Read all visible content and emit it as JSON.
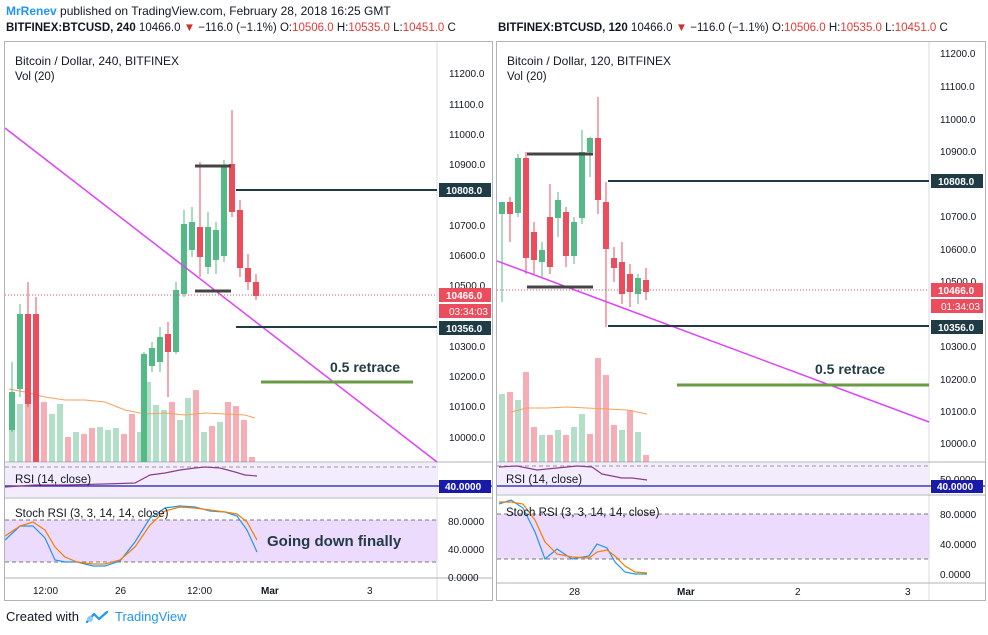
{
  "header": {
    "author": "MrRenev",
    "published_text": "published on TradingView.com, February 28, 2018 16:25 GMT"
  },
  "tickers": [
    {
      "symbol": "BITFINEX:BTCUSD, 240",
      "last": "10466.0",
      "change": "−116.0 (−1.1%)",
      "o_label": "O:",
      "o": "10506.0",
      "h_label": "H:",
      "h": "10535.0",
      "l_label": "L:",
      "l": "10451.0",
      "c_label": "C"
    },
    {
      "symbol": "BITFINEX:BTCUSD, 120",
      "last": "10466.0",
      "change": "−116.0 (−1.1%)",
      "o_label": "O:",
      "o": "10506.0",
      "h_label": "H:",
      "h": "10535.0",
      "l_label": "L:",
      "l": "10451.0",
      "c_label": "C"
    }
  ],
  "panels": [
    {
      "title": "Bitcoin / Dollar, 240, BITFINEX",
      "vol": "Vol (20)",
      "rsi_label": "RSI (14, close)",
      "stoch_label": "Stoch RSI (3, 3, 14, 14, close)",
      "price_ticks": [
        "11200.0",
        "11100.0",
        "11000.0",
        "10900.0",
        "10800.0",
        "10700.0",
        "10600.0",
        "10500.0",
        "10400.0",
        "10300.0",
        "10200.0",
        "10100.0",
        "10000.0"
      ],
      "price_box_1": "10808.0",
      "price_box_2": "10466.0",
      "price_box_timer": "03:34:03",
      "price_box_3": "10356.0",
      "rsi_box": "40.0000",
      "stoch_ticks": [
        "80.0000",
        "40.0000",
        "0.0000"
      ],
      "time_ticks": [
        "12:00",
        "26",
        "12:00",
        "Mar",
        "3"
      ],
      "annotation_1": "0.5  retrace",
      "annotation_2": "Going down finally"
    },
    {
      "title": "Bitcoin / Dollar, 120, BITFINEX",
      "vol": "Vol (20)",
      "rsi_label": "RSI (14, close)",
      "stoch_label": "Stoch RSI (3, 3, 14, 14, close)",
      "price_ticks": [
        "11200.0",
        "11100.0",
        "11000.0",
        "10900.0",
        "10800.0",
        "10700.0",
        "10600.0",
        "10500.0",
        "10400.0",
        "10300.0",
        "10200.0",
        "10100.0",
        "10000.0"
      ],
      "price_box_1": "10808.0",
      "price_box_2": "10466.0",
      "price_box_timer": "01:34:03",
      "price_box_3": "10356.0",
      "rsi_box": "40.0000",
      "stoch_ticks": [
        "80.0000",
        "40.0000",
        "0.0000"
      ],
      "stoch_tick_top": "50.0000",
      "time_ticks": [
        "28",
        "Mar",
        "2",
        "3"
      ],
      "annotation_1": "0.5  retrace"
    }
  ],
  "footer": {
    "created_with": "Created with",
    "brand": "TradingView"
  },
  "colors": {
    "up": "#53b987",
    "down": "#eb4d5c",
    "trend": "#e040fb",
    "retrace": "#6a9a43",
    "axis_box": "#131722",
    "price_box": "#eb4d5c",
    "stoch_band": "#e5cffb"
  }
}
